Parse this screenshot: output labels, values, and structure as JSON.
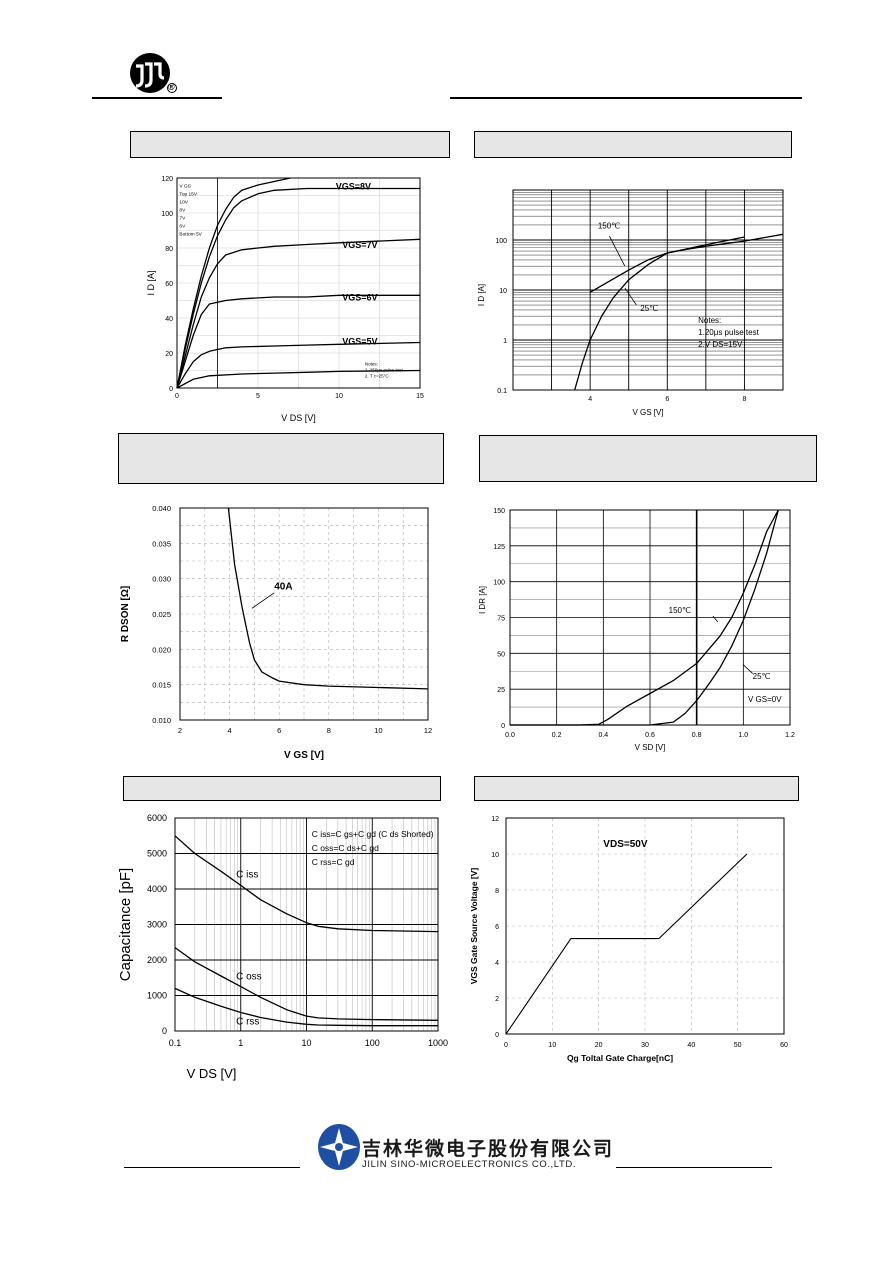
{
  "header": {
    "logo_icon": "jsc-circle-logo-icon",
    "registered_mark": "®"
  },
  "footer": {
    "logo_icon": "star-swirl-logo-icon",
    "company_cn": "吉林华微电子股份有限公司",
    "company_en": "JILIN SINO-MICROELECTRONICS CO.,LTD."
  },
  "chart_data": [
    {
      "id": "output",
      "type": "line",
      "xlabel": "V DS [V]",
      "ylabel": "I D [A]",
      "xlim": [
        0,
        15
      ],
      "ylim": [
        0,
        120
      ],
      "xticks": [
        "0",
        "5",
        "10",
        "15"
      ],
      "yticks": [
        "0",
        "20",
        "40",
        "60",
        "80",
        "100",
        "120"
      ],
      "series": [
        {
          "name": "VGS=8V",
          "x": [
            0,
            0.5,
            1,
            1.5,
            2,
            2.5,
            3,
            3.5,
            4,
            5,
            6,
            8,
            10,
            15
          ],
          "y": [
            0,
            22,
            42,
            60,
            75,
            87,
            96,
            103,
            107,
            111,
            113,
            114,
            114,
            114
          ]
        },
        {
          "name": "VGS=7V",
          "x": [
            0,
            0.5,
            1,
            1.5,
            2,
            2.5,
            3,
            4,
            5,
            6,
            8,
            10,
            15
          ],
          "y": [
            0,
            18,
            36,
            52,
            63,
            71,
            76,
            79,
            80,
            81,
            82,
            83,
            85
          ]
        },
        {
          "name": "VGS=6V",
          "x": [
            0,
            0.5,
            1,
            1.5,
            2,
            3,
            4,
            6,
            8,
            10,
            15
          ],
          "y": [
            0,
            15,
            30,
            42,
            48,
            50,
            51,
            52,
            52,
            53,
            53
          ]
        },
        {
          "name": "VGS=5V",
          "x": [
            0,
            0.5,
            1,
            1.5,
            2,
            3,
            4,
            6,
            8,
            10,
            15
          ],
          "y": [
            0,
            8,
            15,
            19,
            21,
            23,
            23.5,
            24,
            24.5,
            25,
            26
          ]
        },
        {
          "name": "",
          "x": [
            0,
            1,
            2,
            4,
            6,
            8,
            10,
            15
          ],
          "y": [
            0,
            5,
            7,
            8,
            8.5,
            9,
            9.5,
            10
          ]
        },
        {
          "name": "",
          "x": [
            0,
            0.5,
            1,
            1.5,
            2,
            2.5,
            3,
            3.5,
            4,
            5,
            6,
            7
          ],
          "y": [
            0,
            24,
            45,
            64,
            80,
            93,
            102,
            109,
            113,
            116,
            118,
            120
          ]
        }
      ],
      "legend_text": [
        "V GS",
        "Top     15V",
        "           10V",
        "           8V",
        "           7V",
        "           6V",
        "Bottom  5V"
      ],
      "notes": [
        "Notes:",
        "1. 250μs pulse test",
        "2. T c=25°C"
      ],
      "curve_labels": [
        "VGS=8V",
        "VGS=7V",
        "VGS=6V",
        "VGS=5V"
      ]
    },
    {
      "id": "transfer",
      "type": "line",
      "xlabel": "V GS [V]",
      "ylabel": "I D [A]",
      "xscale": "linear",
      "yscale": "log",
      "xlim": [
        2,
        9
      ],
      "ylim": [
        0.1,
        1000
      ],
      "xticks": [
        "4",
        "6",
        "8"
      ],
      "yticks": [
        "0.1",
        "1",
        "10",
        "100"
      ],
      "series": [
        {
          "name": "150℃",
          "x": [
            4,
            4.5,
            5,
            5.5,
            6,
            6.5,
            7,
            8,
            9
          ],
          "y": [
            9,
            15,
            25,
            40,
            55,
            65,
            75,
            95,
            130
          ]
        },
        {
          "name": "25℃",
          "x": [
            3.6,
            3.8,
            4,
            4.3,
            4.6,
            5,
            5.5,
            6,
            7,
            8
          ],
          "y": [
            0.1,
            0.35,
            1,
            3,
            7,
            16,
            32,
            55,
            80,
            115
          ]
        }
      ],
      "curve_labels": [
        "150℃",
        "25℃"
      ],
      "notes": [
        "Notes:",
        "1.20μs pulse test",
        "2.V DS=15V"
      ]
    },
    {
      "id": "rdson",
      "type": "line",
      "xlabel": "V GS [V]",
      "ylabel": "R DSON [Ω]",
      "xlim": [
        2,
        12
      ],
      "ylim": [
        0.01,
        0.04
      ],
      "xticks": [
        "2",
        "4",
        "6",
        "8",
        "10",
        "12"
      ],
      "yticks": [
        "0.010",
        "0.015",
        "0.020",
        "0.025",
        "0.030",
        "0.035",
        "0.040"
      ],
      "series": [
        {
          "name": "40A",
          "x": [
            3.95,
            4.2,
            4.5,
            4.8,
            5,
            5.3,
            5.7,
            6,
            7,
            8,
            10,
            12
          ],
          "y": [
            0.04,
            0.032,
            0.026,
            0.021,
            0.0185,
            0.0168,
            0.016,
            0.0155,
            0.015,
            0.0148,
            0.0146,
            0.0144
          ]
        }
      ],
      "curve_labels": [
        "40A"
      ]
    },
    {
      "id": "diode",
      "type": "line",
      "xlabel": "V SD [V]",
      "ylabel": "I DR [A]",
      "xlim": [
        0,
        1.2
      ],
      "ylim": [
        0,
        150
      ],
      "xticks": [
        "0.0",
        "0.2",
        "0.4",
        "0.6",
        "0.8",
        "1.0",
        "1.2"
      ],
      "yticks": [
        "0",
        "25",
        "50",
        "75",
        "100",
        "125",
        "150"
      ],
      "series": [
        {
          "name": "150℃",
          "x": [
            0,
            0.3,
            0.38,
            0.42,
            0.5,
            0.6,
            0.7,
            0.8,
            0.9,
            0.95,
            1.0,
            1.05,
            1.1,
            1.15
          ],
          "y": [
            0,
            0,
            0.5,
            4,
            13,
            22,
            31,
            43,
            62,
            75,
            92,
            112,
            135,
            150
          ]
        },
        {
          "name": "25℃",
          "x": [
            0,
            0.6,
            0.7,
            0.75,
            0.8,
            0.85,
            0.9,
            0.95,
            1.0,
            1.05,
            1.1,
            1.15
          ],
          "y": [
            0,
            0,
            2,
            8,
            17,
            28,
            40,
            55,
            73,
            95,
            120,
            150
          ]
        }
      ],
      "curve_labels": [
        "150℃",
        "25℃",
        "V GS=0V"
      ]
    },
    {
      "id": "capacitance",
      "type": "line",
      "xlabel": "V DS [V]",
      "ylabel": "Capacitance [pF]",
      "xscale": "log",
      "xlim": [
        0.1,
        1000
      ],
      "ylim": [
        0,
        6000
      ],
      "xticks": [
        "0.1",
        "1",
        "10",
        "100",
        "1000"
      ],
      "yticks": [
        "0",
        "1000",
        "2000",
        "3000",
        "4000",
        "5000",
        "6000"
      ],
      "series": [
        {
          "name": "Ciss",
          "x": [
            0.1,
            0.2,
            0.5,
            1,
            2,
            5,
            10,
            15,
            30,
            100,
            1000
          ],
          "y": [
            5500,
            5000,
            4500,
            4100,
            3700,
            3300,
            3050,
            2950,
            2880,
            2830,
            2800
          ]
        },
        {
          "name": "Coss",
          "x": [
            0.1,
            0.2,
            0.5,
            1,
            2,
            5,
            10,
            15,
            30,
            100,
            1000
          ],
          "y": [
            2350,
            1950,
            1550,
            1250,
            950,
            600,
            420,
            370,
            340,
            320,
            300
          ]
        },
        {
          "name": "Crss",
          "x": [
            0.1,
            0.2,
            0.5,
            1,
            2,
            5,
            10,
            15,
            30,
            100,
            1000
          ],
          "y": [
            1200,
            950,
            700,
            520,
            380,
            250,
            190,
            170,
            160,
            150,
            150
          ]
        }
      ],
      "legend_text": [
        "C iss=C gs+C gd (C ds Shorted)",
        "C oss=C ds+C gd",
        "C rss=C gd"
      ],
      "curve_labels": [
        "C iss",
        "C oss",
        "C rss"
      ]
    },
    {
      "id": "gate_charge",
      "type": "line",
      "xlabel": "Qg Toltal Gate Charge[nC]",
      "ylabel": "VGS Gate Source Voltage [V]",
      "xlim": [
        0,
        60
      ],
      "ylim": [
        0,
        12
      ],
      "xticks": [
        "0",
        "10",
        "20",
        "30",
        "40",
        "50",
        "60"
      ],
      "yticks": [
        "0",
        "2",
        "4",
        "6",
        "8",
        "10",
        "12"
      ],
      "series": [
        {
          "name": "VDS=50V",
          "x": [
            0,
            14,
            33,
            52
          ],
          "y": [
            0,
            5.3,
            5.3,
            10
          ]
        }
      ],
      "curve_labels": [
        "VDS=50V"
      ]
    }
  ]
}
